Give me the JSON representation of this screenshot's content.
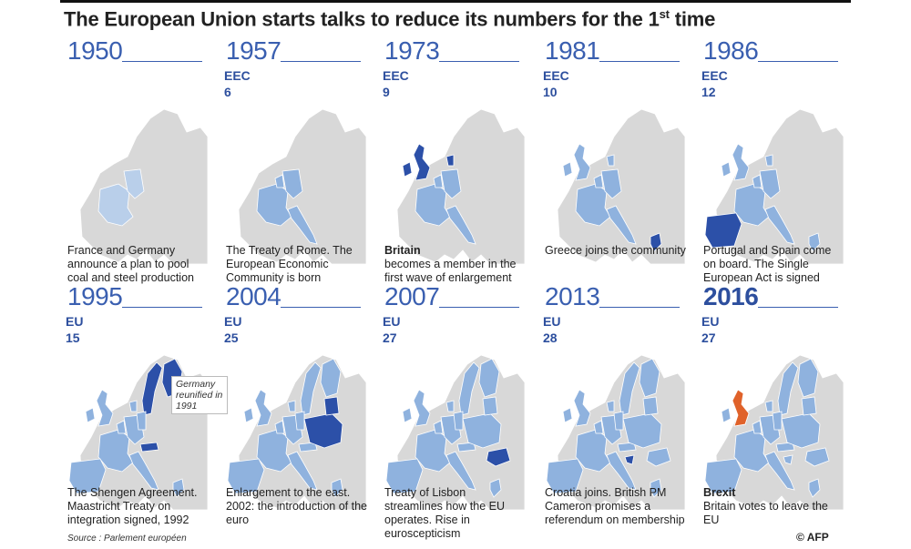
{
  "title": {
    "main": "The European Union starts talks to reduce its numbers for the 1",
    "sup": "st",
    "end": " time"
  },
  "panels": [
    {
      "year": "1950",
      "group": "",
      "count": "",
      "desc_bold": "",
      "desc": "France and Germany announce a plan to pool coal and steel production"
    },
    {
      "year": "1957",
      "group": "EEC",
      "count": "6",
      "desc_bold": "",
      "desc": "The Treaty of Rome. The European Economic Community is born"
    },
    {
      "year": "1973",
      "group": "EEC",
      "count": "9",
      "desc_bold": "Britain",
      "desc": "becomes a member in the first wave of enlargement"
    },
    {
      "year": "1981",
      "group": "EEC",
      "count": "10",
      "desc_bold": "",
      "desc": "Greece joins the community"
    },
    {
      "year": "1986",
      "group": "EEC",
      "count": "12",
      "desc_bold": "",
      "desc": "Portugal and Spain come on board. The Single European Act is signed"
    },
    {
      "year": "1995",
      "group": "EU",
      "count": "15",
      "desc_bold": "",
      "desc": "The Shengen Agreement. Maastricht Treaty on integration signed, 1992"
    },
    {
      "year": "2004",
      "group": "EU",
      "count": "25",
      "desc_bold": "",
      "desc": "Enlargement to the east. 2002: the introduction of the euro"
    },
    {
      "year": "2007",
      "group": "EU",
      "count": "27",
      "desc_bold": "",
      "desc": "Treaty of Lisbon streamlines how the EU operates. Rise in euroscepticism"
    },
    {
      "year": "2013",
      "group": "EU",
      "count": "28",
      "desc_bold": "",
      "desc": "Croatia joins. British PM Cameron promises a referendum on membership"
    },
    {
      "year": "2016",
      "group": "EU",
      "count": "27",
      "desc_bold": "Brexit",
      "desc": "Britain votes to leave the EU"
    }
  ],
  "note": "Germany reunified in 1991",
  "source": "Source : Parlement européen",
  "credit": "© AFP",
  "colors": {
    "member": "#8fb2de",
    "founder": "#b9cfea",
    "new": "#2c50a8",
    "leaving": "#e0622a",
    "land": "#d8d8d8",
    "border": "#ffffff"
  }
}
